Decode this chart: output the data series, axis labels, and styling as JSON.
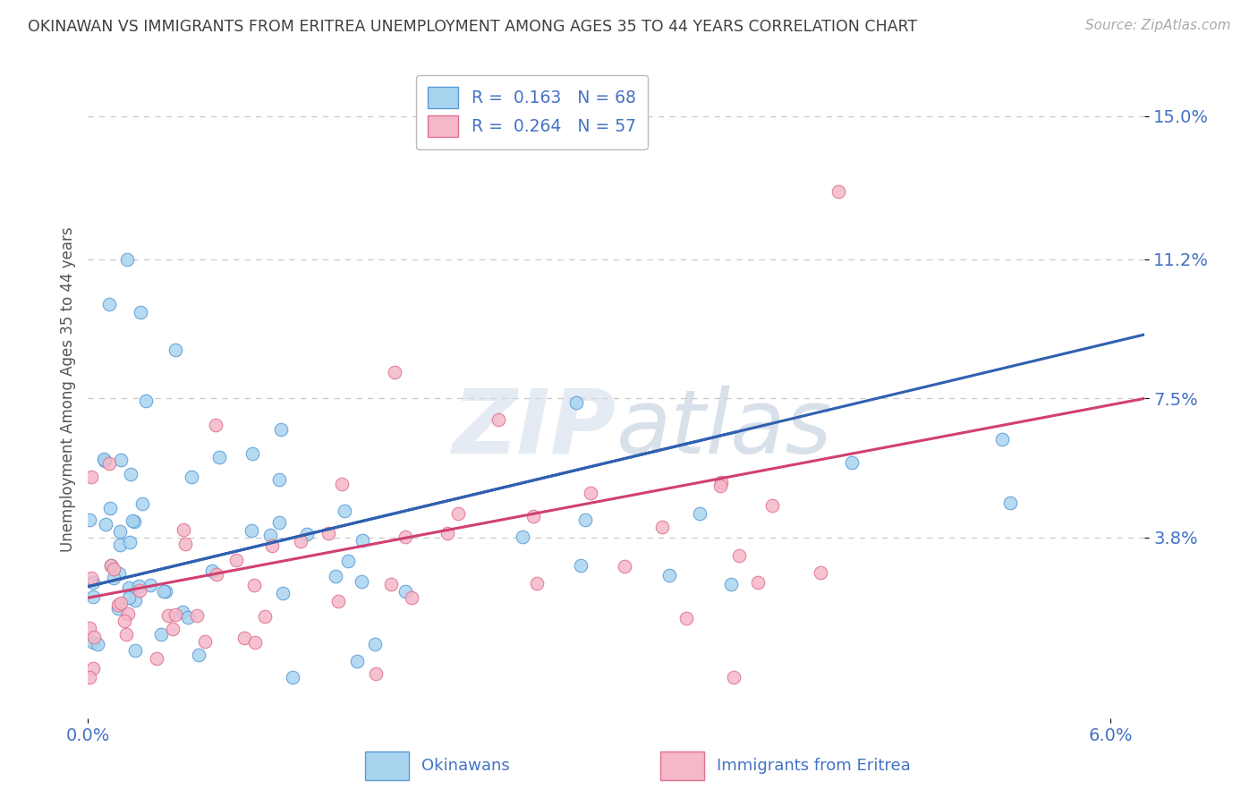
{
  "title": "OKINAWAN VS IMMIGRANTS FROM ERITREA UNEMPLOYMENT AMONG AGES 35 TO 44 YEARS CORRELATION CHART",
  "source": "Source: ZipAtlas.com",
  "ylabel": "Unemployment Among Ages 35 to 44 years",
  "xlim": [
    0.0,
    0.062
  ],
  "ylim": [
    -0.01,
    0.165
  ],
  "yticks": [
    0.038,
    0.075,
    0.112,
    0.15
  ],
  "ytick_labels": [
    "3.8%",
    "7.5%",
    "11.2%",
    "15.0%"
  ],
  "xtick_labels": [
    "0.0%",
    "6.0%"
  ],
  "legend_label1": "Okinawans",
  "legend_label2": "Immigrants from Eritrea",
  "R_okinawan": 0.163,
  "N_okinawan": 68,
  "R_eritrea": 0.264,
  "N_eritrea": 57,
  "color_okinawan": "#a8d4f0",
  "color_eritrea": "#f4b8c8",
  "edge_okinawan": "#5b9bd5",
  "edge_eritrea": "#e07090",
  "trend_color_okinawan": "#3060b0",
  "trend_color_eritrea": "#d04070",
  "background_color": "#ffffff",
  "grid_color": "#c8c8c8",
  "title_color": "#404040",
  "axis_label_color": "#4472c4",
  "watermark_color": "#d0dce8",
  "watermark_alpha": 0.55
}
